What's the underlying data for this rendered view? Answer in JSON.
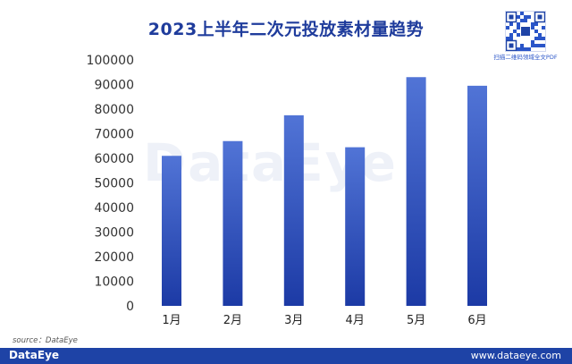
{
  "chart_data": {
    "type": "bar",
    "title": "2023上半年二次元投放素材量趋势",
    "categories": [
      "1月",
      "2月",
      "3月",
      "4月",
      "5月",
      "6月"
    ],
    "values": [
      61000,
      67000,
      77500,
      64500,
      93000,
      89500
    ],
    "yticks": [
      "0",
      "10000",
      "20000",
      "30000",
      "40000",
      "50000",
      "60000",
      "70000",
      "80000",
      "90000",
      "100000"
    ],
    "ylim": [
      0,
      100000
    ],
    "xlabel": "",
    "ylabel": "",
    "grid": false,
    "legend": "none",
    "bar_color_top": "#5174d6",
    "bar_color_bottom": "#1c3aa5"
  },
  "branding": {
    "qr_caption": "扫描二维码领域全文PDF",
    "watermark": "DataEye",
    "source": "source：DataEye",
    "footer_logo": "DataEye",
    "footer_url": "www.dataeye.com"
  }
}
